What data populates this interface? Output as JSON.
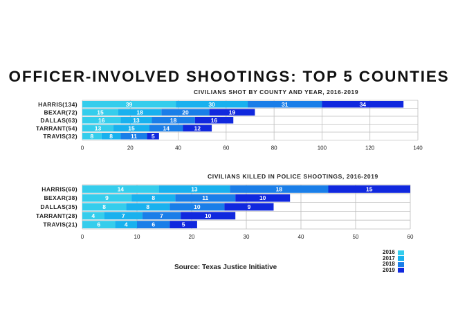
{
  "title": "OFFICER-INVOLVED SHOOTINGS: TOP 5 COUNTIES",
  "source": "Source: Texas Justice Initiative",
  "colors": {
    "2016": "#35cdec",
    "2017": "#19b1ee",
    "2018": "#1a7ee8",
    "2019": "#1028de",
    "grid": "#bdbdbd"
  },
  "legend": [
    {
      "label": "2016",
      "color": "#35cdec"
    },
    {
      "label": "2017",
      "color": "#19b1ee"
    },
    {
      "label": "2018",
      "color": "#1a7ee8"
    },
    {
      "label": "2019",
      "color": "#1028de"
    }
  ],
  "chart_data": [
    {
      "type": "bar",
      "orientation": "horizontal",
      "stacked": true,
      "title": "CIVILIANS SHOT BY COUNTY AND YEAR, 2016-2019",
      "categories": [
        "HARRIS(134)",
        "BEXAR(72)",
        "DALLAS(63)",
        "TARRANT(54)",
        "TRAVIS(32)"
      ],
      "series": [
        {
          "name": "2016",
          "values": [
            39,
            15,
            16,
            13,
            8
          ]
        },
        {
          "name": "2017",
          "values": [
            30,
            18,
            13,
            15,
            8
          ]
        },
        {
          "name": "2018",
          "values": [
            31,
            20,
            18,
            14,
            11
          ]
        },
        {
          "name": "2019",
          "values": [
            34,
            19,
            16,
            12,
            5
          ]
        }
      ],
      "xlim": [
        0,
        140
      ],
      "xticks": [
        0,
        20,
        40,
        60,
        80,
        100,
        120,
        140
      ],
      "grid": true
    },
    {
      "type": "bar",
      "orientation": "horizontal",
      "stacked": true,
      "title": "CIVILIANS KILLED IN POLICE SHOOTINGS, 2016-2019",
      "categories": [
        "HARRIS(60)",
        "BEXAR(38)",
        "DALLAS(35)",
        "TARRANT(28)",
        "TRAVIS(21)"
      ],
      "series": [
        {
          "name": "2016",
          "values": [
            14,
            9,
            8,
            4,
            6
          ]
        },
        {
          "name": "2017",
          "values": [
            13,
            8,
            8,
            7,
            4
          ]
        },
        {
          "name": "2018",
          "values": [
            18,
            11,
            10,
            7,
            6
          ]
        },
        {
          "name": "2019",
          "values": [
            15,
            10,
            9,
            10,
            5
          ]
        }
      ],
      "xlim": [
        0,
        60
      ],
      "xticks": [
        0,
        10,
        20,
        30,
        40,
        50,
        60
      ],
      "grid": true
    }
  ]
}
